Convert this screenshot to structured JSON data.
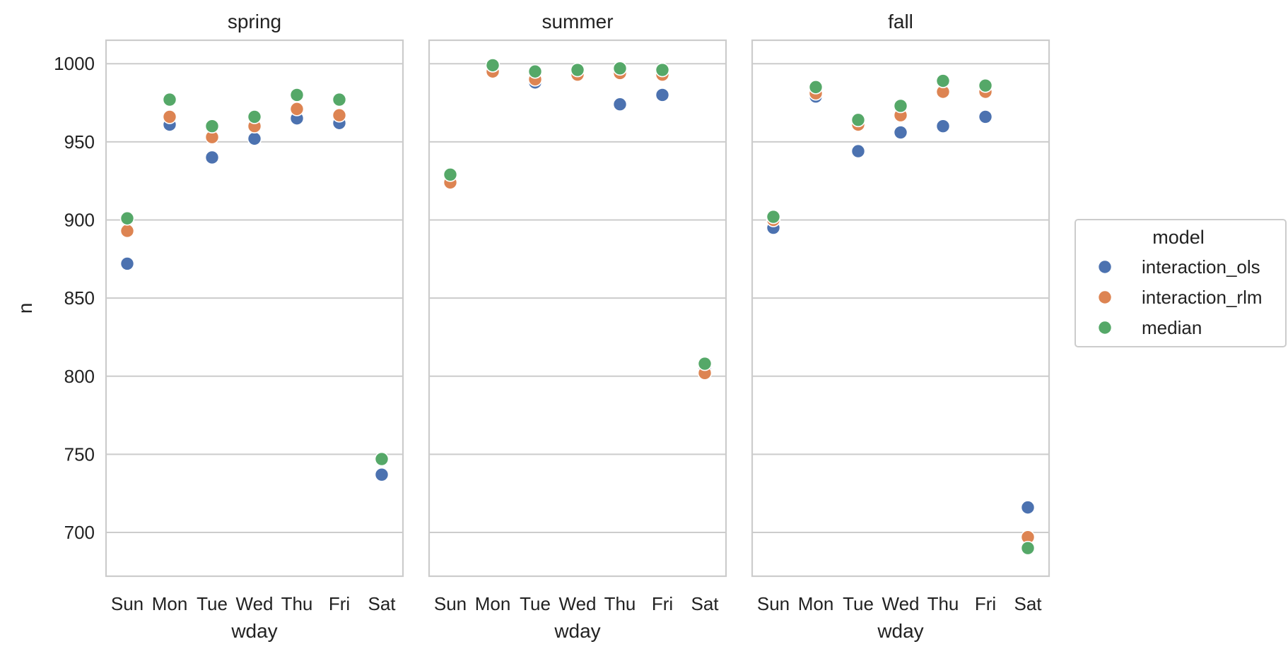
{
  "chart_data": {
    "type": "scatter",
    "ylabel": "n",
    "xlabel": "wday",
    "ylim": [
      672,
      1015
    ],
    "yticks": [
      700,
      750,
      800,
      850,
      900,
      950,
      1000
    ],
    "grid": true,
    "categories": [
      "Sun",
      "Mon",
      "Tue",
      "Wed",
      "Thu",
      "Fri",
      "Sat"
    ],
    "legend": {
      "title": "model",
      "placement": "right",
      "entries": [
        "interaction_ols",
        "interaction_rlm",
        "median"
      ]
    },
    "colors": {
      "interaction_ols": "#4c72b0",
      "interaction_rlm": "#dd8452",
      "median": "#55a868"
    },
    "panels": [
      {
        "title": "spring",
        "series": [
          {
            "name": "interaction_ols",
            "values": [
              872,
              961,
              940,
              952,
              965,
              962,
              737
            ]
          },
          {
            "name": "interaction_rlm",
            "values": [
              893,
              966,
              953,
              960,
              971,
              967,
              null
            ]
          },
          {
            "name": "median",
            "values": [
              901,
              977,
              960,
              966,
              980,
              977,
              747
            ]
          }
        ]
      },
      {
        "title": "summer",
        "series": [
          {
            "name": "interaction_ols",
            "values": [
              926,
              996,
              988,
              994,
              974,
              980,
              804
            ]
          },
          {
            "name": "interaction_rlm",
            "values": [
              924,
              995,
              990,
              993,
              994,
              993,
              802
            ]
          },
          {
            "name": "median",
            "values": [
              929,
              999,
              995,
              996,
              997,
              996,
              808
            ]
          }
        ]
      },
      {
        "title": "fall",
        "series": [
          {
            "name": "interaction_ols",
            "values": [
              895,
              979,
              944,
              956,
              960,
              966,
              716
            ]
          },
          {
            "name": "interaction_rlm",
            "values": [
              900,
              981,
              961,
              967,
              982,
              982,
              697
            ]
          },
          {
            "name": "median",
            "values": [
              902,
              985,
              964,
              973,
              989,
              986,
              690
            ]
          }
        ]
      }
    ]
  }
}
